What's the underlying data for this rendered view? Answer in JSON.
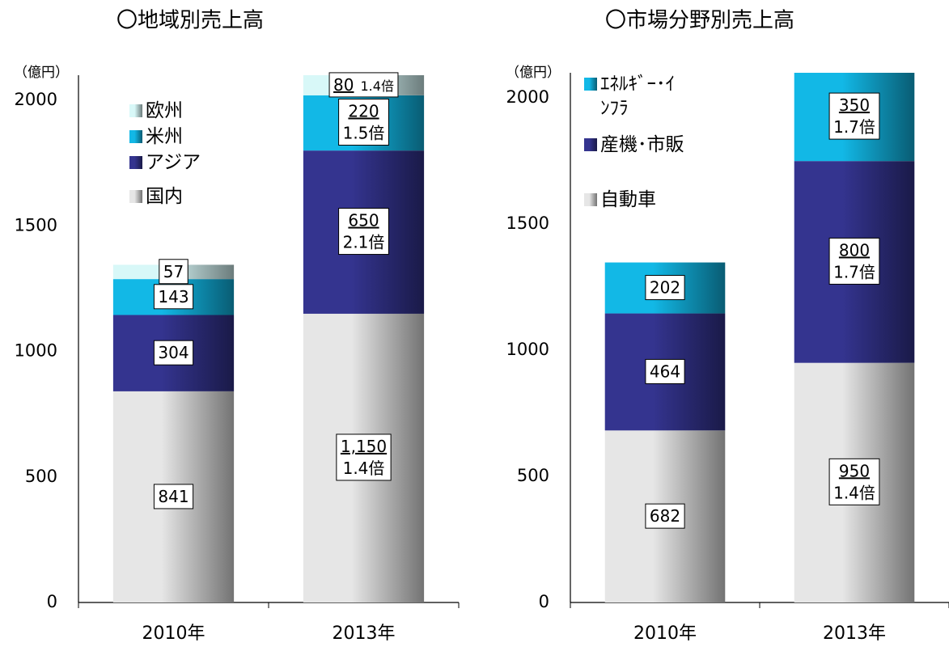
{
  "chart_data": [
    {
      "type": "bar",
      "stacked": true,
      "title": "〇地域別売上高",
      "unit_label": "（億円）",
      "categories": [
        "2010年",
        "2013年"
      ],
      "ylim": [
        0,
        2100
      ],
      "yticks": [
        0,
        500,
        1000,
        1500,
        2000
      ],
      "series": [
        {
          "name": "国内",
          "color": "#e6e6e6",
          "values": [
            841,
            1150
          ],
          "value_labels": [
            "841",
            "1,150"
          ],
          "growth": [
            null,
            "1.4倍"
          ]
        },
        {
          "name": "アジア",
          "color": "#34348f",
          "values": [
            304,
            650
          ],
          "growth": [
            null,
            "2.1倍"
          ]
        },
        {
          "name": "米州",
          "color": "#12b8e6",
          "values": [
            143,
            220
          ],
          "growth": [
            null,
            "1.5倍"
          ]
        },
        {
          "name": "欧州",
          "color": "#d8f8f8",
          "values": [
            57,
            80
          ],
          "growth": [
            null,
            "1.4倍"
          ]
        }
      ]
    },
    {
      "type": "bar",
      "stacked": true,
      "title": "〇市場分野別売上高",
      "unit_label": "（億円）",
      "categories": [
        "2010年",
        "2013年"
      ],
      "ylim": [
        0,
        2100
      ],
      "yticks": [
        0,
        500,
        1000,
        1500,
        2000
      ],
      "series": [
        {
          "name": "自動車",
          "color": "#e6e6e6",
          "values": [
            682,
            950
          ],
          "growth": [
            null,
            "1.4倍"
          ]
        },
        {
          "name": "産機･市販",
          "color": "#34348f",
          "values": [
            464,
            800
          ],
          "growth": [
            null,
            "1.7倍"
          ]
        },
        {
          "name": "ｴﾈﾙｷﾞｰ･ｲﾝﾌﾗ",
          "color": "#12b8e6",
          "values": [
            202,
            350
          ],
          "growth": [
            null,
            "1.7倍"
          ]
        }
      ]
    }
  ]
}
